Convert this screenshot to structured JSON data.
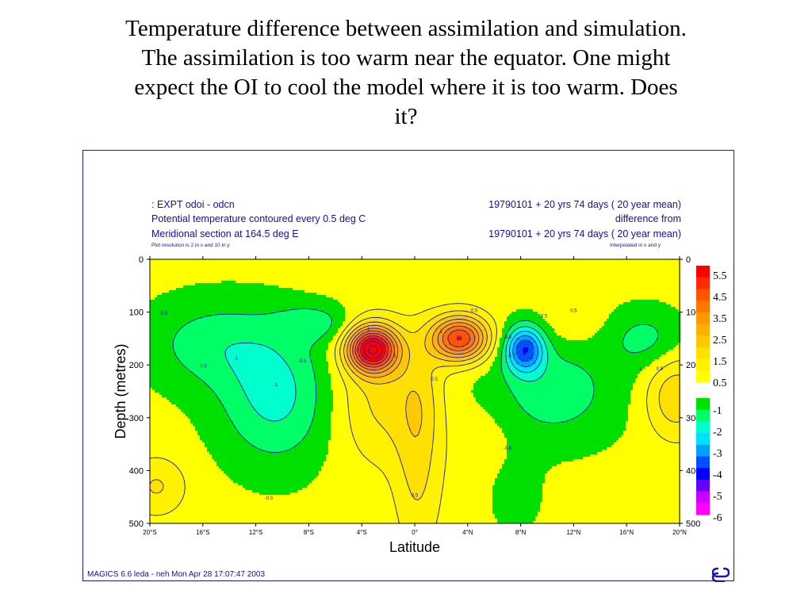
{
  "slide": {
    "title_lines": [
      "Temperature difference between assimilation and simulation.",
      "The assimilation is too warm near the equator.  One might",
      "expect the OI to cool the model where it is too warm.  Does",
      "it?"
    ]
  },
  "plot_header": {
    "left": [
      ": EXPT odoi - odcn",
      "Potential temperature contoured every 0.5 deg C",
      "Meridional section at 164.5 deg E"
    ],
    "left_small": "Plot resolution is 2 in x and 10 in y",
    "right": [
      "19790101 + 20 yrs 74 days ( 20 year mean)",
      "difference from",
      "19790101 + 20 yrs 74 days ( 20 year mean)"
    ],
    "right_small": "Interpolated in x and y"
  },
  "footer": "MAGICS 6.6 leda - neh Mon Apr 28 17:07:47 2003",
  "chart_data": {
    "type": "heatmap",
    "title": "",
    "xlabel": "Latitude",
    "ylabel": "Depth (metres)",
    "x_ticks": [
      "20°S",
      "16°S",
      "12°S",
      "8°S",
      "4°S",
      "0°",
      "4°N",
      "8°N",
      "12°N",
      "16°N",
      "20°N"
    ],
    "x_tick_values": [
      -20,
      -16,
      -12,
      -8,
      -4,
      0,
      4,
      8,
      12,
      16,
      20
    ],
    "y_ticks": [
      "0",
      "100",
      "200",
      "300",
      "400",
      "500"
    ],
    "y_tick_values": [
      0,
      100,
      200,
      300,
      400,
      500
    ],
    "xlim": [
      -20,
      20
    ],
    "ylim": [
      500,
      0
    ],
    "contour_interval": 0.5,
    "legend_positive": [
      "5.5",
      "4.5",
      "3.5",
      "2.5",
      "1.5",
      "0.5"
    ],
    "legend_negative": [
      "-1",
      "-2",
      "-3",
      "-4",
      "-5",
      "-6"
    ],
    "colors": {
      "positive": [
        "#ff0000",
        "#ff2a00",
        "#ff5500",
        "#ff7700",
        "#ff9900",
        "#ffb000",
        "#ffc800",
        "#ffe000",
        "#fff200",
        "#ffff00"
      ],
      "negative": [
        "#00e000",
        "#00ff66",
        "#00ffcc",
        "#00e0ff",
        "#00a0ff",
        "#0050ff",
        "#0000ff",
        "#6600ff",
        "#cc00ff",
        "#ff00ff"
      ],
      "contour": "#1a1aa6",
      "frame": "#1a1aa6"
    },
    "features": [
      {
        "type": "warm_max",
        "lat": -3.2,
        "depth": 170,
        "value": 4.5
      },
      {
        "type": "warm_max",
        "lat": 3.4,
        "depth": 150,
        "value": 3.5
      },
      {
        "type": "cool_min",
        "lat": 8.3,
        "depth": 170,
        "value": -2
      },
      {
        "type": "cool_region",
        "lat": -10.5,
        "depth": 240,
        "value": -1
      }
    ],
    "contour_labels": [
      "0.5",
      "1",
      "1.5",
      "2",
      "-0.5",
      "-1",
      "-1.5",
      "-2"
    ]
  }
}
